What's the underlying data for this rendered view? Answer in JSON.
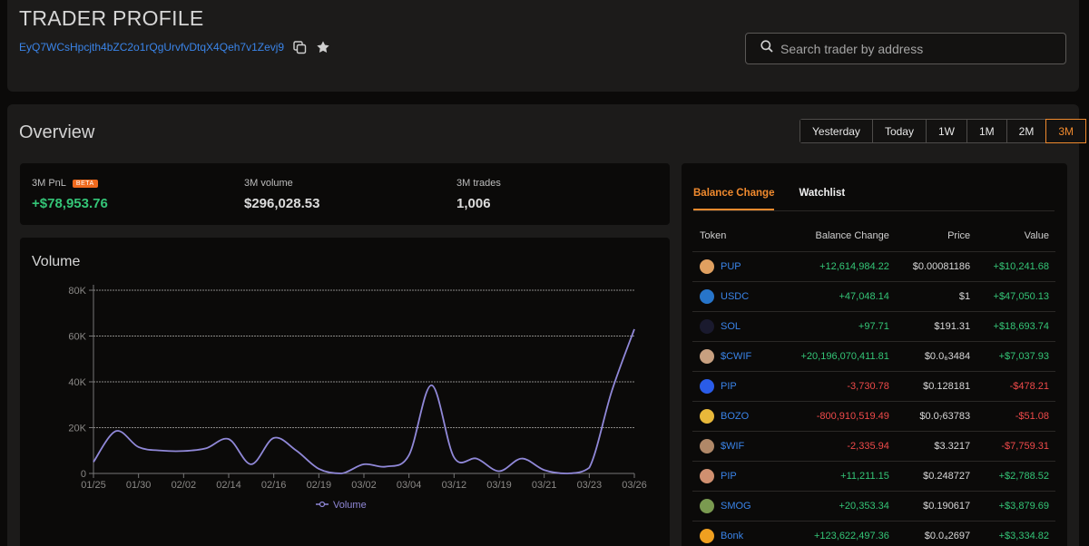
{
  "header": {
    "title": "TRADER PROFILE",
    "address": "EyQ7WCsHpcjth4bZC2o1rQgUrvfvDtqX4Qeh7v1Zevj9",
    "search_placeholder": "Search trader by address"
  },
  "overview": {
    "title": "Overview",
    "tabs": [
      "Yesterday",
      "Today",
      "1W",
      "1M",
      "2M",
      "3M"
    ],
    "active_tab": "3M",
    "stats": {
      "pnl_label": "3M PnL",
      "beta_badge": "BETA",
      "pnl_value": "+$78,953.76",
      "volume_label": "3M volume",
      "volume_value": "$296,028.53",
      "trades_label": "3M trades",
      "trades_value": "1,006"
    }
  },
  "volume": {
    "title": "Volume",
    "legend": "Volume"
  },
  "chart_data": {
    "type": "line",
    "title": "Volume",
    "xlabel": "",
    "ylabel": "",
    "ylim": [
      0,
      80000
    ],
    "yticks": [
      "0",
      "20K",
      "40K",
      "60K",
      "80K"
    ],
    "categories": [
      "01/25",
      "01/30",
      "02/02",
      "02/14",
      "02/16",
      "02/19",
      "03/02",
      "03/04",
      "03/12",
      "03/19",
      "03/21",
      "03/23",
      "03/26"
    ],
    "x": [
      0,
      0.5,
      1,
      1.5,
      2,
      2.5,
      3,
      3.5,
      4,
      4.5,
      5,
      5.5,
      6,
      6.5,
      7,
      7.5,
      8,
      8.5,
      9,
      9.5,
      10,
      10.5,
      11,
      11.5,
      12
    ],
    "series": [
      {
        "name": "Volume",
        "color": "#9088d8",
        "values": [
          5000,
          18500,
          11500,
          10000,
          9800,
          11000,
          15000,
          4000,
          15500,
          10000,
          2000,
          0,
          4000,
          3000,
          8000,
          38500,
          7000,
          6500,
          1000,
          6500,
          1500,
          0,
          2500,
          36000,
          63000
        ]
      }
    ],
    "legend": "bottom-center",
    "grid": true
  },
  "balance": {
    "tabs": [
      "Balance Change",
      "Watchlist"
    ],
    "active_tab": "Balance Change",
    "columns": [
      "Token",
      "Balance Change",
      "Price",
      "Value"
    ],
    "rows": [
      {
        "token": "PUP",
        "icon": "pup-icon",
        "icon_color": "#e0a060",
        "change": "+12,614,984.22",
        "price": "$0.00081186",
        "value": "+$10,241.68",
        "change_sign": "pos",
        "value_sign": "pos"
      },
      {
        "token": "USDC",
        "icon": "usdc-icon",
        "icon_color": "#2775ca",
        "change": "+47,048.14",
        "price": "$1",
        "value": "+$47,050.13",
        "change_sign": "pos",
        "value_sign": "pos"
      },
      {
        "token": "SOL",
        "icon": "sol-icon",
        "icon_color": "#1a1a2e",
        "change": "+97.71",
        "price": "$191.31",
        "value": "+$18,693.74",
        "change_sign": "pos",
        "value_sign": "pos"
      },
      {
        "token": "$CWIF",
        "icon": "cwif-icon",
        "icon_color": "#c8a080",
        "change": "+20,196,070,411.81",
        "price": "$0.0₆3484",
        "value": "+$7,037.93",
        "change_sign": "pos",
        "value_sign": "pos"
      },
      {
        "token": "PIP",
        "icon": "pip-blue-icon",
        "icon_color": "#2a5ce8",
        "change": "-3,730.78",
        "price": "$0.128181",
        "value": "-$478.21",
        "change_sign": "neg",
        "value_sign": "neg"
      },
      {
        "token": "BOZO",
        "icon": "bozo-icon",
        "icon_color": "#e8b83a",
        "change": "-800,910,519.49",
        "price": "$0.0₇63783",
        "value": "-$51.08",
        "change_sign": "neg",
        "value_sign": "neg"
      },
      {
        "token": "$WIF",
        "icon": "wif-icon",
        "icon_color": "#b08868",
        "change": "-2,335.94",
        "price": "$3.3217",
        "value": "-$7,759.31",
        "change_sign": "neg",
        "value_sign": "neg"
      },
      {
        "token": "PIP",
        "icon": "pip-icon",
        "icon_color": "#d09070",
        "change": "+11,211.15",
        "price": "$0.248727",
        "value": "+$2,788.52",
        "change_sign": "pos",
        "value_sign": "pos"
      },
      {
        "token": "SMOG",
        "icon": "smog-icon",
        "icon_color": "#7a9a50",
        "change": "+20,353.34",
        "price": "$0.190617",
        "value": "+$3,879.69",
        "change_sign": "pos",
        "value_sign": "pos"
      },
      {
        "token": "Bonk",
        "icon": "bonk-icon",
        "icon_color": "#f0a020",
        "change": "+123,622,497.36",
        "price": "$0.0₄2697",
        "value": "+$3,334.82",
        "change_sign": "pos",
        "value_sign": "pos"
      }
    ]
  }
}
